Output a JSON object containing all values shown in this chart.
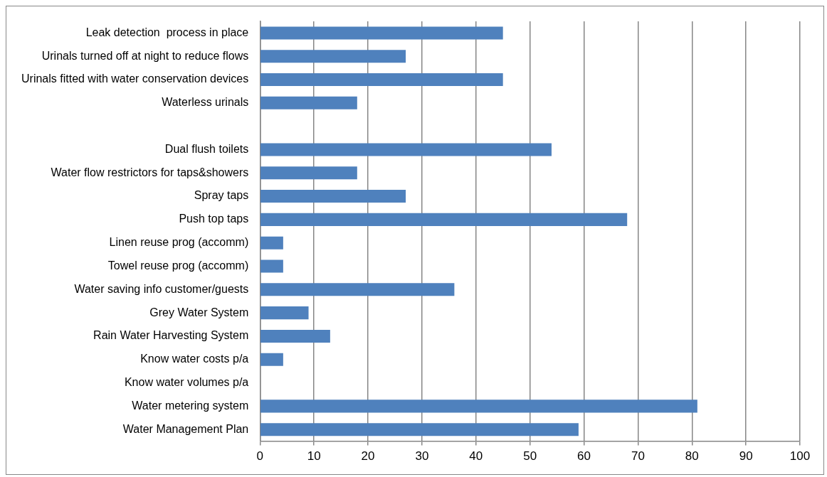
{
  "chart_data": {
    "type": "bar",
    "orientation": "horizontal",
    "categories": [
      "Leak detection  process in place",
      "Urinals turned off at night to reduce flows",
      "Urinals fitted with water conservation devices",
      "Waterless urinals",
      null,
      "Dual flush toilets",
      "Water flow restrictors for taps&showers",
      "Spray taps",
      "Push top taps",
      "Linen reuse prog (accomm)",
      "Towel reuse prog (accomm)",
      "Water saving info customer/guests",
      "Grey Water System",
      "Rain Water Harvesting System",
      "Know water costs p/a",
      "Know water volumes p/a",
      "Water metering system",
      "Water Management Plan"
    ],
    "values": [
      45,
      27,
      45,
      18,
      0,
      54,
      18,
      27,
      68,
      4.3,
      4.3,
      36,
      9,
      13,
      4.3,
      0,
      81,
      59
    ],
    "color": "#4f81bd",
    "xlim": [
      0,
      100
    ],
    "xticks": [
      0,
      10,
      20,
      30,
      40,
      50,
      60,
      70,
      80,
      90,
      100
    ],
    "grid": "x",
    "legend": false
  }
}
